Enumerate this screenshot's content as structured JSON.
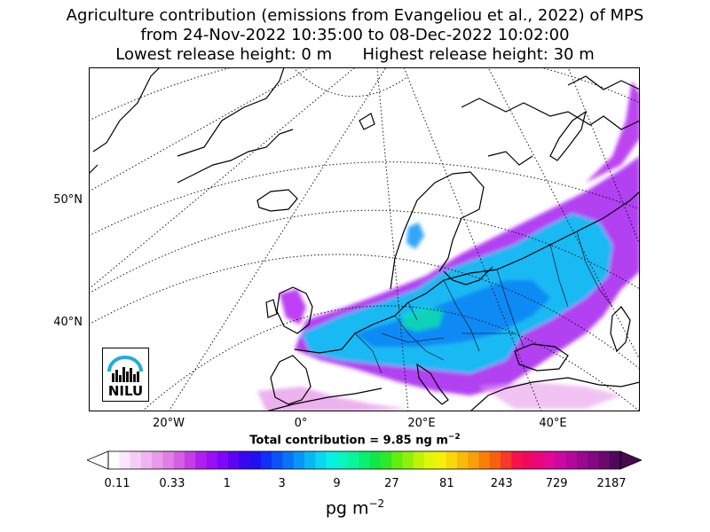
{
  "title": {
    "line1": "Agriculture contribution (emissions from Evangeliou et al., 2022) of MPS",
    "line2": "from 24-Nov-2022 10:35:00 to 08-Dec-2022 10:02:00",
    "line3": "Lowest release height: 0 m      Highest release height: 30 m"
  },
  "map": {
    "lat_labels": [
      "50°N",
      "40°N"
    ],
    "lon_labels": [
      "20°W",
      "0°",
      "20°E",
      "40°E"
    ],
    "land_color": "#ffffff",
    "coast_color": "#000000",
    "graticule_color": "#000000"
  },
  "total_contribution": "Total contribution = 9.85 ng m",
  "total_contribution_exp": "−2",
  "colorbar": {
    "tick_labels": [
      "0.11",
      "0.33",
      "1",
      "3",
      "9",
      "27",
      "81",
      "243",
      "729",
      "2187"
    ],
    "colors": [
      "#ffffff",
      "#fbe6fb",
      "#f6cdf6",
      "#f0b4f0",
      "#e89be9",
      "#e07fe3",
      "#d45fe4",
      "#c43ee6",
      "#b11ff0",
      "#9a10f5",
      "#7f06f7",
      "#5c05f5",
      "#3a06f0",
      "#2010f2",
      "#1130f5",
      "#0b52f8",
      "#0874fa",
      "#0896f8",
      "#08b8f4",
      "#08d8f0",
      "#08f0e4",
      "#08f5c0",
      "#08f59a",
      "#08f070",
      "#10e848",
      "#30e828",
      "#60ee10",
      "#90f008",
      "#bcf408",
      "#e0f808",
      "#f5f008",
      "#f8d808",
      "#f8bc08",
      "#f8a008",
      "#f88008",
      "#f86010",
      "#f83828",
      "#f81048",
      "#f00860",
      "#e8087c",
      "#e00894",
      "#cc08a0",
      "#b4089c",
      "#9c0890",
      "#840880",
      "#6c0870",
      "#50085c"
    ],
    "below_color": "#ffffff",
    "above_color": "#4a084f",
    "unit": "pg m",
    "unit_exp": "−2"
  },
  "logo": {
    "text": "NILU",
    "arc_color": "#1eabe2"
  }
}
